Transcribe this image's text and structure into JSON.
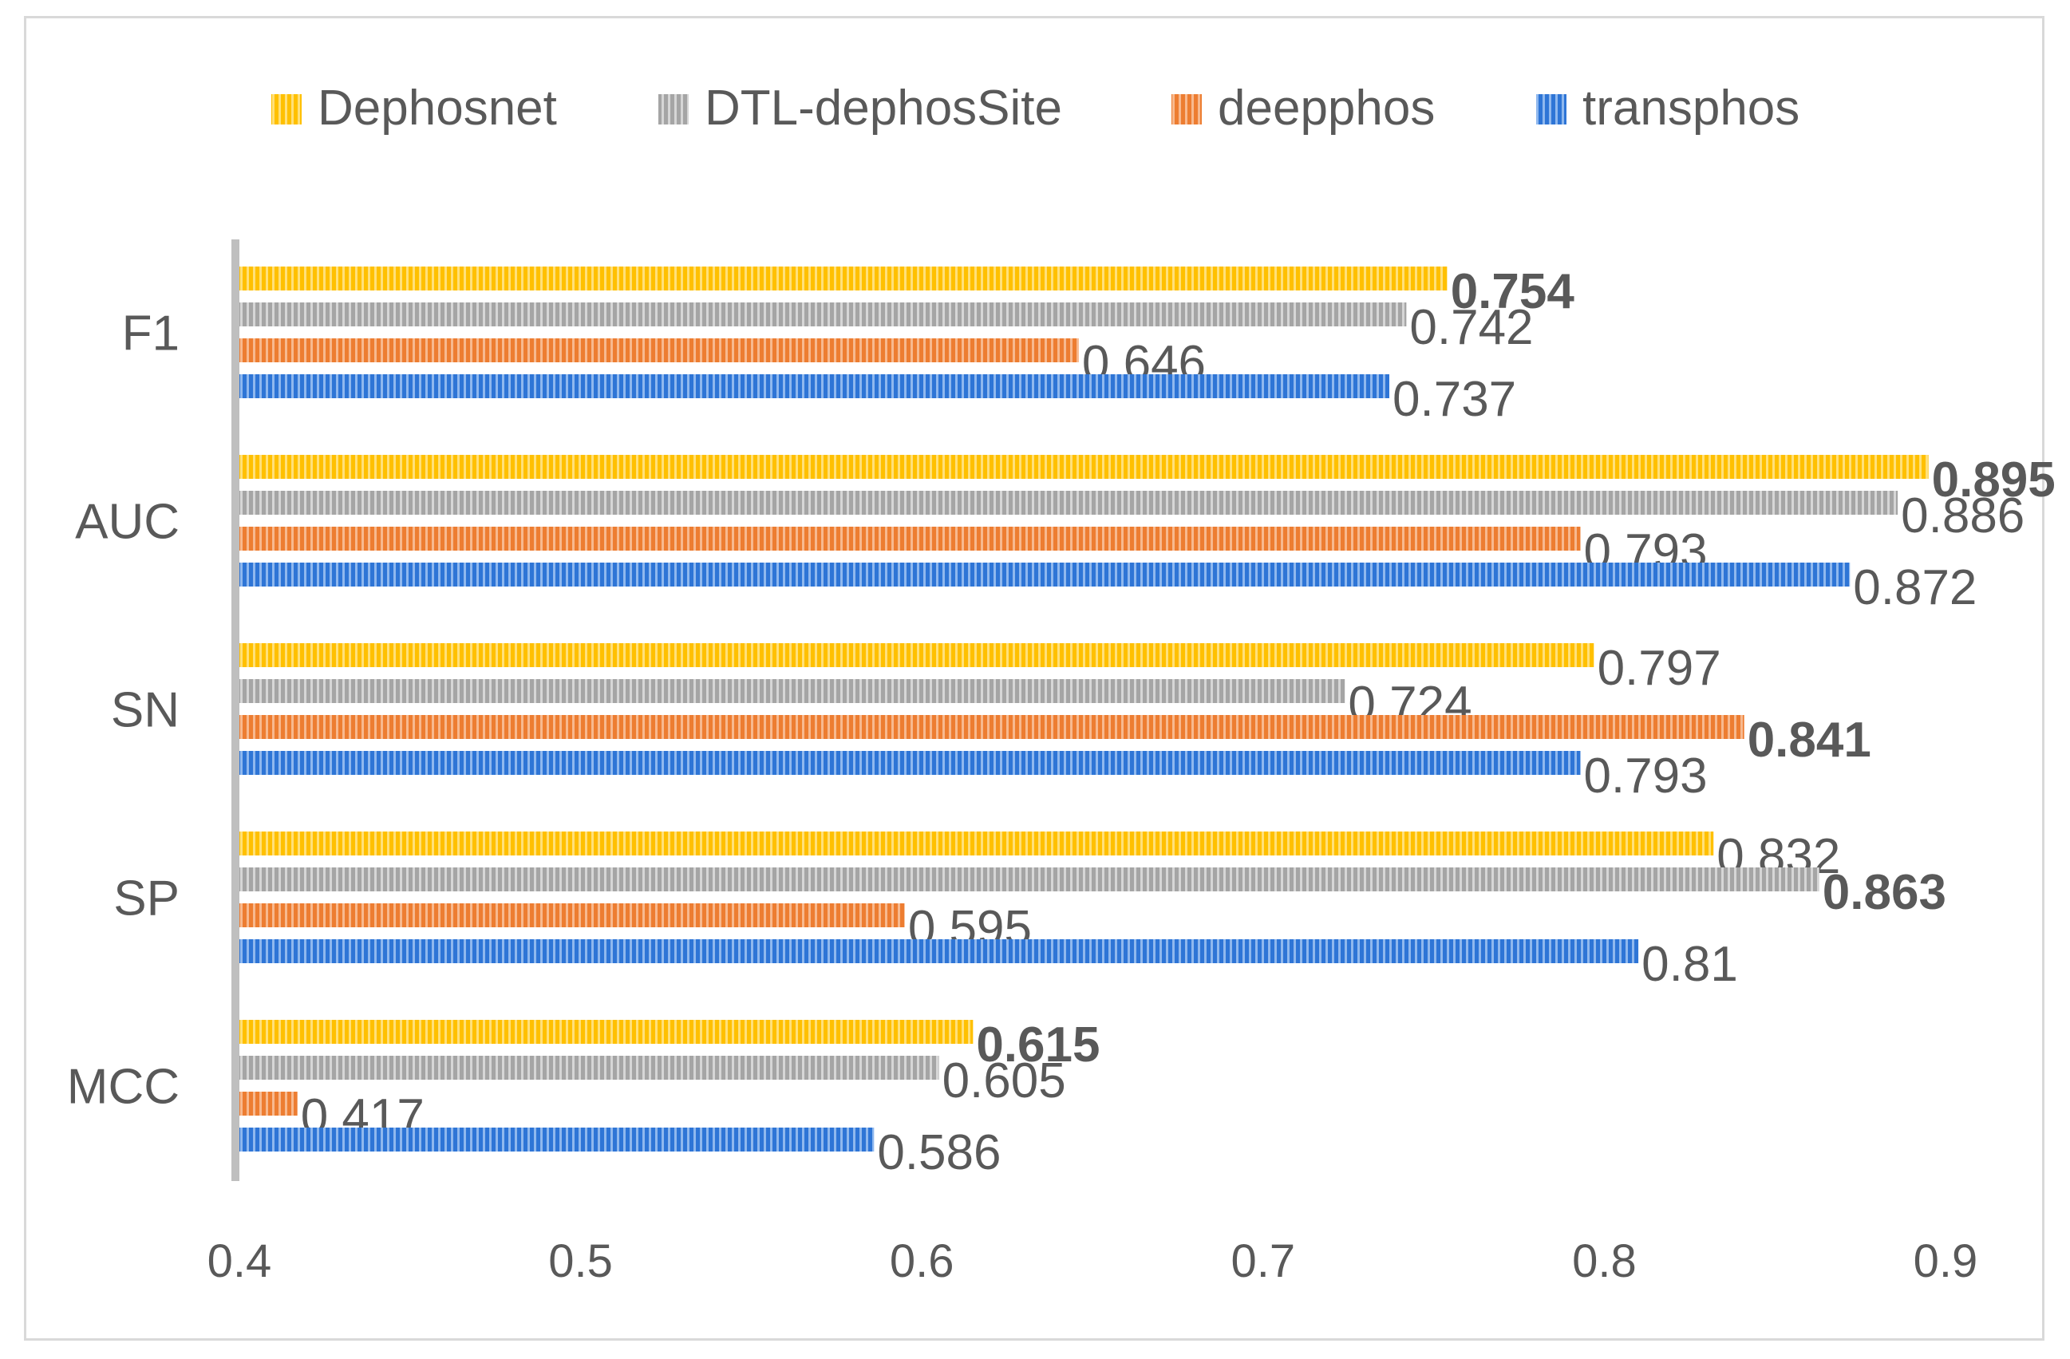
{
  "chart_data": {
    "type": "bar",
    "orientation": "horizontal",
    "title": "",
    "xlabel": "",
    "ylabel": "",
    "xlim": [
      0.4,
      0.9
    ],
    "x_ticks": [
      "0.4",
      "0.5",
      "0.6",
      "0.7",
      "0.8",
      "0.9"
    ],
    "legend_position": "top",
    "categories": [
      "F1",
      "AUC",
      "SN",
      "SP",
      "MCC"
    ],
    "series": [
      {
        "name": "Dephosnet",
        "color": "#ffc000",
        "stripe": "#ffe07a",
        "values": [
          0.754,
          0.895,
          0.797,
          0.832,
          0.615
        ],
        "labels": [
          "0.754",
          "0.895",
          "0.797",
          "0.832",
          "0.615"
        ]
      },
      {
        "name": "DTL-dephosSite",
        "color": "#a5a5a5",
        "stripe": "#d6d6d6",
        "values": [
          0.742,
          0.886,
          0.724,
          0.863,
          0.605
        ],
        "labels": [
          "0.742",
          "0.886",
          "0.724",
          "0.863",
          "0.605"
        ]
      },
      {
        "name": "deepphos",
        "color": "#ed7d31",
        "stripe": "#f7b98f",
        "values": [
          0.646,
          0.793,
          0.841,
          0.595,
          0.417
        ],
        "labels": [
          "0.646",
          "0.793",
          "0.841",
          "0.595",
          "0.417"
        ]
      },
      {
        "name": "transphos",
        "color": "#2e75d6",
        "stripe": "#8fb8ee",
        "values": [
          0.737,
          0.872,
          0.793,
          0.81,
          0.586
        ],
        "labels": [
          "0.737",
          "0.872",
          "0.793",
          "0.81",
          "0.586"
        ]
      }
    ],
    "bold_labels": {
      "F1": "Dephosnet",
      "AUC": "Dephosnet",
      "SN": "deepphos",
      "SP": "DTL-dephosSite",
      "MCC": "Dephosnet"
    },
    "grid": false
  }
}
